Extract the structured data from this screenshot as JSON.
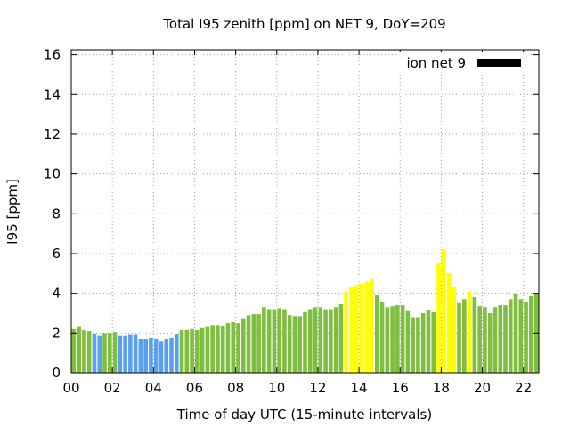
{
  "chart_data": {
    "type": "bar",
    "title": "Total I95 zenith [ppm] on NET 9, DoY=209",
    "xlabel": "Time of day UTC (15-minute intervals)",
    "ylabel": "I95 [ppm]",
    "xlim": [
      0,
      22.75
    ],
    "ylim": [
      0,
      16.25
    ],
    "xticks": [
      "00",
      "02",
      "04",
      "06",
      "08",
      "10",
      "12",
      "14",
      "16",
      "18",
      "20",
      "22"
    ],
    "yticks": [
      "0",
      "2",
      "4",
      "6",
      "8",
      "10",
      "12",
      "14",
      "16"
    ],
    "grid": true,
    "legend": {
      "label": "ion net 9",
      "position": "top-right"
    },
    "colors": {
      "green": "#7fbf3f",
      "blue": "#5aa0f0",
      "yellow": "#ffff00",
      "legend_swatch": "#000000"
    },
    "series": [
      {
        "name": "ion net 9",
        "x": [
          0.0,
          0.25,
          0.5,
          0.75,
          1.0,
          1.25,
          1.5,
          1.75,
          2.0,
          2.25,
          2.5,
          2.75,
          3.0,
          3.25,
          3.5,
          3.75,
          4.0,
          4.25,
          4.5,
          4.75,
          5.0,
          5.25,
          5.5,
          5.75,
          6.0,
          6.25,
          6.5,
          6.75,
          7.0,
          7.25,
          7.5,
          7.75,
          8.0,
          8.25,
          8.5,
          8.75,
          9.0,
          9.25,
          9.5,
          9.75,
          10.0,
          10.25,
          10.5,
          10.75,
          11.0,
          11.25,
          11.5,
          11.75,
          12.0,
          12.25,
          12.5,
          12.75,
          13.0,
          13.25,
          13.5,
          13.75,
          14.0,
          14.25,
          14.5,
          14.75,
          15.0,
          15.25,
          15.5,
          15.75,
          16.0,
          16.25,
          16.5,
          16.75,
          17.0,
          17.25,
          17.5,
          17.75,
          18.0,
          18.25,
          18.5,
          18.75,
          19.0,
          19.25,
          19.5,
          19.75,
          20.0,
          20.25,
          20.5,
          20.75,
          21.0,
          21.25,
          21.5,
          21.75,
          22.0,
          22.25,
          22.5
        ],
        "values": [
          2.2,
          2.3,
          2.15,
          2.1,
          1.95,
          1.85,
          2.0,
          2.0,
          2.05,
          1.85,
          1.85,
          1.9,
          1.9,
          1.7,
          1.7,
          1.75,
          1.7,
          1.6,
          1.7,
          1.75,
          1.95,
          2.15,
          2.15,
          2.2,
          2.15,
          2.25,
          2.3,
          2.4,
          2.4,
          2.35,
          2.5,
          2.55,
          2.5,
          2.7,
          2.9,
          2.95,
          2.95,
          3.3,
          3.2,
          3.2,
          3.25,
          3.2,
          2.9,
          2.85,
          2.85,
          3.05,
          3.2,
          3.3,
          3.3,
          3.2,
          3.2,
          3.3,
          3.45,
          4.1,
          4.3,
          4.4,
          4.5,
          4.6,
          4.7,
          3.9,
          3.55,
          3.3,
          3.35,
          3.4,
          3.4,
          3.1,
          2.8,
          2.8,
          3.0,
          3.15,
          3.05,
          5.5,
          6.2,
          5.0,
          4.3,
          3.5,
          3.7,
          4.1,
          3.8,
          3.35,
          3.3,
          3.0,
          3.3,
          3.4,
          3.4,
          3.7,
          4.0,
          3.7,
          3.55,
          3.85,
          4.0
        ],
        "colors": [
          "green",
          "green",
          "green",
          "green",
          "blue",
          "blue",
          "green",
          "green",
          "green",
          "blue",
          "blue",
          "blue",
          "blue",
          "blue",
          "blue",
          "blue",
          "blue",
          "blue",
          "blue",
          "blue",
          "blue",
          "green",
          "green",
          "green",
          "green",
          "green",
          "green",
          "green",
          "green",
          "green",
          "green",
          "green",
          "green",
          "green",
          "green",
          "green",
          "green",
          "green",
          "green",
          "green",
          "green",
          "green",
          "green",
          "green",
          "green",
          "green",
          "green",
          "green",
          "green",
          "green",
          "green",
          "green",
          "green",
          "yellow",
          "yellow",
          "yellow",
          "yellow",
          "yellow",
          "yellow",
          "green",
          "green",
          "green",
          "green",
          "green",
          "green",
          "green",
          "green",
          "green",
          "green",
          "green",
          "green",
          "yellow",
          "yellow",
          "yellow",
          "yellow",
          "green",
          "green",
          "yellow",
          "green",
          "green",
          "green",
          "green",
          "green",
          "green",
          "green",
          "green",
          "green",
          "green",
          "green",
          "green",
          "green"
        ]
      }
    ]
  }
}
